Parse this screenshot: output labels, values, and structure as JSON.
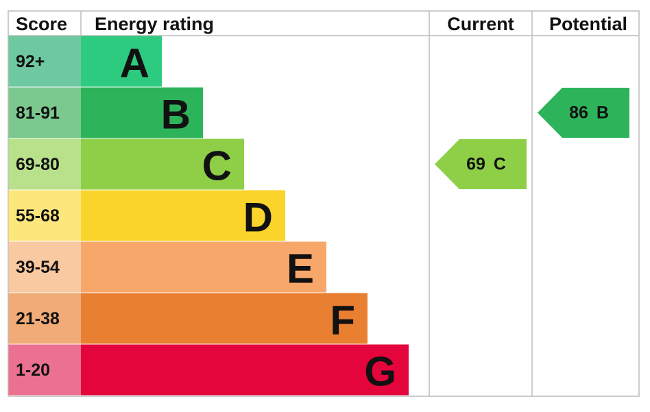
{
  "header": {
    "score": "Score",
    "energy_rating": "Energy rating",
    "current": "Current",
    "potential": "Potential"
  },
  "bands": [
    {
      "score": "92+",
      "letter": "A",
      "color": "#2ccb80",
      "score_color": "#6ec9a1"
    },
    {
      "score": "81-91",
      "letter": "B",
      "color": "#2db45a",
      "score_color": "#7bc98e"
    },
    {
      "score": "69-80",
      "letter": "C",
      "color": "#8ecf47",
      "score_color": "#b9e08b"
    },
    {
      "score": "55-68",
      "letter": "D",
      "color": "#fad42b",
      "score_color": "#fde67b"
    },
    {
      "score": "39-54",
      "letter": "E",
      "color": "#f7a76a",
      "score_color": "#f9c9a1"
    },
    {
      "score": "21-38",
      "letter": "F",
      "color": "#e97f30",
      "score_color": "#f0ab76"
    },
    {
      "score": "1-20",
      "letter": "G",
      "color": "#e3053c",
      "score_color": "#ec7090"
    }
  ],
  "current": {
    "value": 69,
    "letter": "C"
  },
  "potential": {
    "value": 86,
    "letter": "B"
  }
}
